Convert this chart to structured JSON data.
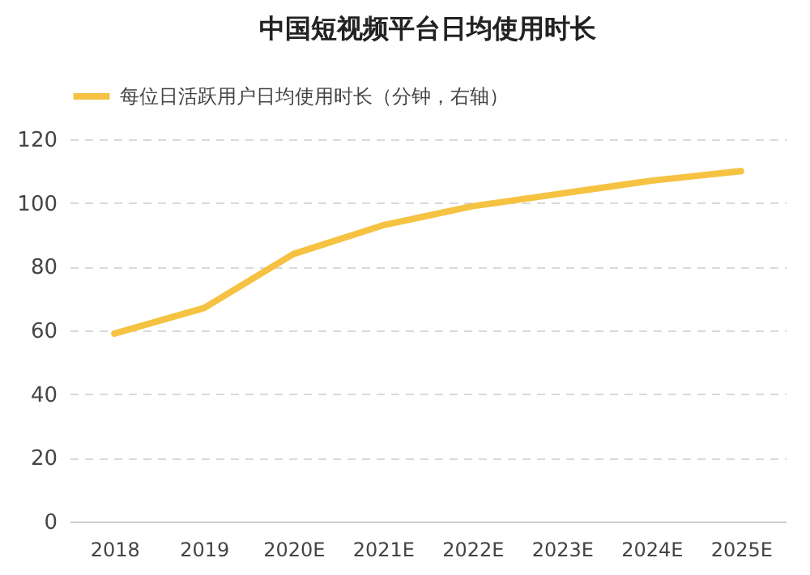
{
  "chart_data": {
    "type": "line",
    "title": "中国短视频平台日均使用时长",
    "categories": [
      "2018",
      "2019",
      "2020E",
      "2021E",
      "2022E",
      "2023E",
      "2024E",
      "2025E"
    ],
    "series": [
      {
        "name": "每位日活跃用户日均使用时长（分钟，右轴）",
        "color": "#f5c242",
        "values": [
          59,
          67,
          84,
          93,
          99,
          103,
          107,
          110
        ]
      }
    ],
    "ylim": [
      0,
      120
    ],
    "yticks": [
      0,
      20,
      40,
      60,
      80,
      100,
      120
    ],
    "grid": "y",
    "legend": "top",
    "line_style": "solid",
    "marker": "none"
  }
}
